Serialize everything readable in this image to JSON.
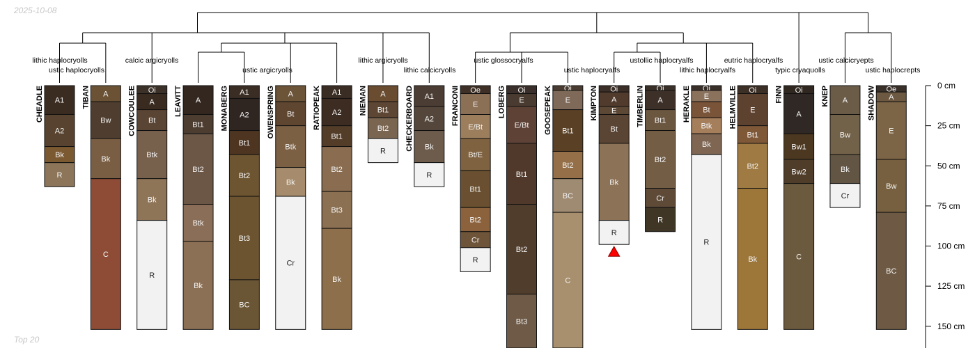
{
  "meta": {
    "date": "2025-10-08",
    "footer": "Top 20"
  },
  "chart_data": {
    "type": "soil-profile-sketch",
    "depth_unit": "cm",
    "depth_ticks": [
      0,
      25,
      50,
      75,
      100,
      125,
      150
    ],
    "depth_tick_labels": [
      "0 cm",
      "25 cm",
      "50 cm",
      "75 cm",
      "100 cm",
      "125 cm",
      "150 cm"
    ],
    "ylim": [
      0,
      160
    ],
    "dendrogram_groups": [
      "lithic haplocryolls",
      "ustic haplocryolls",
      "calcic argicryolls",
      "ustic argicryolls",
      "lithic argicryolls",
      "lithic calcicryolls",
      "ustic glossocryalfs",
      "ustic haplocryalfs",
      "ustollic haplocryalfs",
      "lithic haplocryalfs",
      "eutric haplocryalfs",
      "typic cryaquolls",
      "ustic calcicryepts",
      "ustic haplocrepts"
    ],
    "profiles": [
      {
        "name": "CHEADLE",
        "horizons": [
          {
            "name": "A1",
            "top": 0,
            "bottom": 18,
            "color": "#3b2c22"
          },
          {
            "name": "A2",
            "top": 18,
            "bottom": 38,
            "color": "#57432f"
          },
          {
            "name": "Bk",
            "top": 38,
            "bottom": 48,
            "color": "#7b5a32"
          },
          {
            "name": "R",
            "top": 48,
            "bottom": 63,
            "color": "#8c7559"
          }
        ]
      },
      {
        "name": "TIBAN",
        "horizons": [
          {
            "name": "A",
            "top": 0,
            "bottom": 10,
            "color": "#6b5235"
          },
          {
            "name": "Bw",
            "top": 10,
            "bottom": 33,
            "color": "#4f3e2f"
          },
          {
            "name": "Bk",
            "top": 33,
            "bottom": 58,
            "color": "#7a5e43"
          },
          {
            "name": "C",
            "top": 58,
            "bottom": 152,
            "color": "#8e4c36"
          }
        ]
      },
      {
        "name": "COWCOULEE",
        "horizons": [
          {
            "name": "Oi",
            "top": 0,
            "bottom": 5,
            "color": "#3c3129"
          },
          {
            "name": "A",
            "top": 5,
            "bottom": 15,
            "color": "#3a2b20"
          },
          {
            "name": "Bt",
            "top": 15,
            "bottom": 28,
            "color": "#5a4433"
          },
          {
            "name": "Btk",
            "top": 28,
            "bottom": 58,
            "color": "#77604c"
          },
          {
            "name": "Bk",
            "top": 58,
            "bottom": 84,
            "color": "#8f7558"
          },
          {
            "name": "R",
            "top": 84,
            "bottom": 152,
            "color": "#f2f2f2"
          }
        ]
      },
      {
        "name": "LEAVITT",
        "horizons": [
          {
            "name": "A",
            "top": 0,
            "bottom": 18,
            "color": "#332720"
          },
          {
            "name": "Bt1",
            "top": 18,
            "bottom": 30,
            "color": "#4d3c30"
          },
          {
            "name": "Bt2",
            "top": 30,
            "bottom": 74,
            "color": "#6c5747"
          },
          {
            "name": "Btk",
            "top": 74,
            "bottom": 97,
            "color": "#8a6e58"
          },
          {
            "name": "Bk",
            "top": 97,
            "bottom": 152,
            "color": "#8c7055"
          }
        ]
      },
      {
        "name": "MONABERG",
        "horizons": [
          {
            "name": "A1",
            "top": 0,
            "bottom": 8,
            "color": "#3a2d24"
          },
          {
            "name": "A2",
            "top": 8,
            "bottom": 28,
            "color": "#2f2621"
          },
          {
            "name": "Bt1",
            "top": 28,
            "bottom": 43,
            "color": "#4d3521"
          },
          {
            "name": "Bt2",
            "top": 43,
            "bottom": 69,
            "color": "#6e5532"
          },
          {
            "name": "Bt3",
            "top": 69,
            "bottom": 121,
            "color": "#6d5430"
          },
          {
            "name": "BC",
            "top": 121,
            "bottom": 152,
            "color": "#6a5534"
          }
        ]
      },
      {
        "name": "OWENSPRING",
        "horizons": [
          {
            "name": "A",
            "top": 0,
            "bottom": 10,
            "color": "#6c5438"
          },
          {
            "name": "Bt",
            "top": 10,
            "bottom": 25,
            "color": "#5f4630"
          },
          {
            "name": "Btk",
            "top": 25,
            "bottom": 51,
            "color": "#7b6044"
          },
          {
            "name": "Bk",
            "top": 51,
            "bottom": 69,
            "color": "#a68c6c"
          },
          {
            "name": "Cr",
            "top": 69,
            "bottom": 152,
            "color": "#f2f2f2"
          }
        ]
      },
      {
        "name": "RATIOPEAK",
        "horizons": [
          {
            "name": "A1",
            "top": 0,
            "bottom": 8,
            "color": "#3a2d24"
          },
          {
            "name": "A2",
            "top": 8,
            "bottom": 25,
            "color": "#3c2c22"
          },
          {
            "name": "Bt1",
            "top": 25,
            "bottom": 38,
            "color": "#533c28"
          },
          {
            "name": "Bt2",
            "top": 38,
            "bottom": 66,
            "color": "#8a6d50"
          },
          {
            "name": "Bt3",
            "top": 66,
            "bottom": 89,
            "color": "#8c7052"
          },
          {
            "name": "Bk",
            "top": 89,
            "bottom": 152,
            "color": "#8e6f4b"
          }
        ]
      },
      {
        "name": "NIEMAN",
        "horizons": [
          {
            "name": "A",
            "top": 0,
            "bottom": 10,
            "color": "#6a4c30"
          },
          {
            "name": "Bt1",
            "top": 10,
            "bottom": 20,
            "color": "#5d4634"
          },
          {
            "name": "Bt2",
            "top": 20,
            "bottom": 33,
            "color": "#7a6550"
          },
          {
            "name": "R",
            "top": 33,
            "bottom": 48,
            "color": "#f2f2f2"
          }
        ]
      },
      {
        "name": "CHECKERBOARD",
        "horizons": [
          {
            "name": "A1",
            "top": 0,
            "bottom": 13,
            "color": "#4b3d33"
          },
          {
            "name": "A2",
            "top": 13,
            "bottom": 28,
            "color": "#55463b"
          },
          {
            "name": "Bk",
            "top": 28,
            "bottom": 48,
            "color": "#6d5c4c"
          },
          {
            "name": "R",
            "top": 48,
            "bottom": 63,
            "color": "#f2f2f2"
          }
        ]
      },
      {
        "name": "FRANCONI",
        "horizons": [
          {
            "name": "Oe",
            "top": 0,
            "bottom": 5,
            "color": "#3e3026"
          },
          {
            "name": "E",
            "top": 5,
            "bottom": 18,
            "color": "#8c7056"
          },
          {
            "name": "E/Bt",
            "top": 18,
            "bottom": 33,
            "color": "#9c7e5c"
          },
          {
            "name": "Bt/E",
            "top": 33,
            "bottom": 53,
            "color": "#7f6240"
          },
          {
            "name": "Bt1",
            "top": 53,
            "bottom": 76,
            "color": "#6a5030"
          },
          {
            "name": "Bt2",
            "top": 76,
            "bottom": 91,
            "color": "#8b623c"
          },
          {
            "name": "Cr",
            "top": 91,
            "bottom": 101,
            "color": "#6e5439"
          },
          {
            "name": "R",
            "top": 101,
            "bottom": 116,
            "color": "#f2f2f2"
          }
        ]
      },
      {
        "name": "LOBERG",
        "horizons": [
          {
            "name": "Oi",
            "top": 0,
            "bottom": 5,
            "color": "#3a2f2a"
          },
          {
            "name": "E",
            "top": 5,
            "bottom": 13,
            "color": "#4a3b30"
          },
          {
            "name": "E/Bt",
            "top": 13,
            "bottom": 36,
            "color": "#5e4236"
          },
          {
            "name": "Bt1",
            "top": 36,
            "bottom": 74,
            "color": "#50392b"
          },
          {
            "name": "Bt2",
            "top": 74,
            "bottom": 130,
            "color": "#503d2c"
          },
          {
            "name": "Bt3",
            "top": 130,
            "bottom": 165,
            "color": "#6e5a47"
          }
        ]
      },
      {
        "name": "GOOSEPEAK",
        "horizons": [
          {
            "name": "Oi",
            "top": 0,
            "bottom": 3,
            "color": "#4a3c31"
          },
          {
            "name": "E",
            "top": 3,
            "bottom": 15,
            "color": "#7f6a59"
          },
          {
            "name": "Bt1",
            "top": 15,
            "bottom": 41,
            "color": "#5a4126"
          },
          {
            "name": "Bt2",
            "top": 41,
            "bottom": 58,
            "color": "#946f47"
          },
          {
            "name": "BC",
            "top": 58,
            "bottom": 79,
            "color": "#9f8a72"
          },
          {
            "name": "C",
            "top": 79,
            "bottom": 165,
            "color": "#a8906f"
          }
        ]
      },
      {
        "name": "KIMPTON",
        "bottom_marker": true,
        "horizons": [
          {
            "name": "Oi",
            "top": 0,
            "bottom": 4,
            "color": "#3b2f27"
          },
          {
            "name": "A",
            "top": 4,
            "bottom": 13,
            "color": "#513b2c"
          },
          {
            "name": "E",
            "top": 13,
            "bottom": 18,
            "color": "#5d4836"
          },
          {
            "name": "Bt",
            "top": 18,
            "bottom": 36,
            "color": "#5a4433"
          },
          {
            "name": "Bk",
            "top": 36,
            "bottom": 84,
            "color": "#8c7257"
          },
          {
            "name": "R",
            "top": 84,
            "bottom": 99,
            "color": "#f2f2f2"
          }
        ]
      },
      {
        "name": "TIMBERLIN",
        "horizons": [
          {
            "name": "Oi",
            "top": 0,
            "bottom": 3,
            "color": "#3a302a"
          },
          {
            "name": "A",
            "top": 3,
            "bottom": 15,
            "color": "#3d3028"
          },
          {
            "name": "Bt1",
            "top": 15,
            "bottom": 28,
            "color": "#6b5640"
          },
          {
            "name": "Bt2",
            "top": 28,
            "bottom": 64,
            "color": "#735d45"
          },
          {
            "name": "Cr",
            "top": 64,
            "bottom": 76,
            "color": "#5e4a37"
          },
          {
            "name": "R",
            "top": 76,
            "bottom": 91,
            "color": "#3f3625"
          }
        ]
      },
      {
        "name": "HERAKLE",
        "horizons": [
          {
            "name": "Oi",
            "top": 0,
            "bottom": 3,
            "color": "#3a302a"
          },
          {
            "name": "E",
            "top": 3,
            "bottom": 10,
            "color": "#8a725d"
          },
          {
            "name": "Bt",
            "top": 10,
            "bottom": 20,
            "color": "#7a5438"
          },
          {
            "name": "Btk",
            "top": 20,
            "bottom": 30,
            "color": "#a57e5c"
          },
          {
            "name": "Bk",
            "top": 30,
            "bottom": 43,
            "color": "#7e6653"
          },
          {
            "name": "R",
            "top": 43,
            "bottom": 152,
            "color": "#f2f2f2"
          }
        ]
      },
      {
        "name": "HELMVILLE",
        "horizons": [
          {
            "name": "Oi",
            "top": 0,
            "bottom": 5,
            "color": "#3c2f26"
          },
          {
            "name": "E",
            "top": 5,
            "bottom": 25,
            "color": "#5e4230"
          },
          {
            "name": "Bt1",
            "top": 25,
            "bottom": 36,
            "color": "#7f5838"
          },
          {
            "name": "Bt2",
            "top": 36,
            "bottom": 64,
            "color": "#9f7a43"
          },
          {
            "name": "Bk",
            "top": 64,
            "bottom": 152,
            "color": "#9d7639"
          }
        ]
      },
      {
        "name": "FINN",
        "horizons": [
          {
            "name": "Oi",
            "top": 0,
            "bottom": 5,
            "color": "#302820"
          },
          {
            "name": "A",
            "top": 5,
            "bottom": 30,
            "color": "#2f2824"
          },
          {
            "name": "Bw1",
            "top": 30,
            "bottom": 46,
            "color": "#4c3820"
          },
          {
            "name": "Bw2",
            "top": 46,
            "bottom": 61,
            "color": "#4f3c29"
          },
          {
            "name": "C",
            "top": 61,
            "bottom": 152,
            "color": "#6c5a3e"
          }
        ]
      },
      {
        "name": "KNEP",
        "horizons": [
          {
            "name": "A",
            "top": 0,
            "bottom": 18,
            "color": "#6b5c48"
          },
          {
            "name": "Bw",
            "top": 18,
            "bottom": 43,
            "color": "#726249"
          },
          {
            "name": "Bk",
            "top": 43,
            "bottom": 61,
            "color": "#625544"
          },
          {
            "name": "Cr",
            "top": 61,
            "bottom": 76,
            "color": "#f2f2f2"
          }
        ]
      },
      {
        "name": "SHADOW",
        "horizons": [
          {
            "name": "Oe",
            "top": 0,
            "bottom": 4,
            "color": "#3a302a"
          },
          {
            "name": "A",
            "top": 4,
            "bottom": 10,
            "color": "#6d5842"
          },
          {
            "name": "E",
            "top": 10,
            "bottom": 46,
            "color": "#7c6446"
          },
          {
            "name": "Bw",
            "top": 46,
            "bottom": 79,
            "color": "#77603f"
          },
          {
            "name": "BC",
            "top": 79,
            "bottom": 152,
            "color": "#6e5a44"
          }
        ]
      }
    ]
  }
}
